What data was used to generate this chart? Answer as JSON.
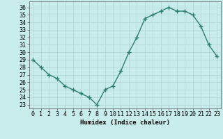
{
  "x": [
    0,
    1,
    2,
    3,
    4,
    5,
    6,
    7,
    8,
    9,
    10,
    11,
    12,
    13,
    14,
    15,
    16,
    17,
    18,
    19,
    20,
    21,
    22,
    23
  ],
  "y": [
    29,
    28,
    27,
    26.5,
    25.5,
    25,
    24.5,
    24,
    23,
    25,
    25.5,
    27.5,
    30,
    32,
    34.5,
    35,
    35.5,
    36,
    35.5,
    35.5,
    35,
    33.5,
    31,
    29.5
  ],
  "line_color": "#2e7d6e",
  "marker": "+",
  "bg_color": "#c8ebeb",
  "grid_color": "#b0d8d8",
  "xlabel": "Humidex (Indice chaleur)",
  "yticks": [
    23,
    24,
    25,
    26,
    27,
    28,
    29,
    30,
    31,
    32,
    33,
    34,
    35,
    36
  ],
  "xlim": [
    -0.5,
    23.5
  ],
  "ylim": [
    22.5,
    36.8
  ],
  "xlabel_fontsize": 6.5,
  "tick_fontsize": 6,
  "line_width": 1.0,
  "marker_size": 4,
  "marker_edge_width": 1.0
}
